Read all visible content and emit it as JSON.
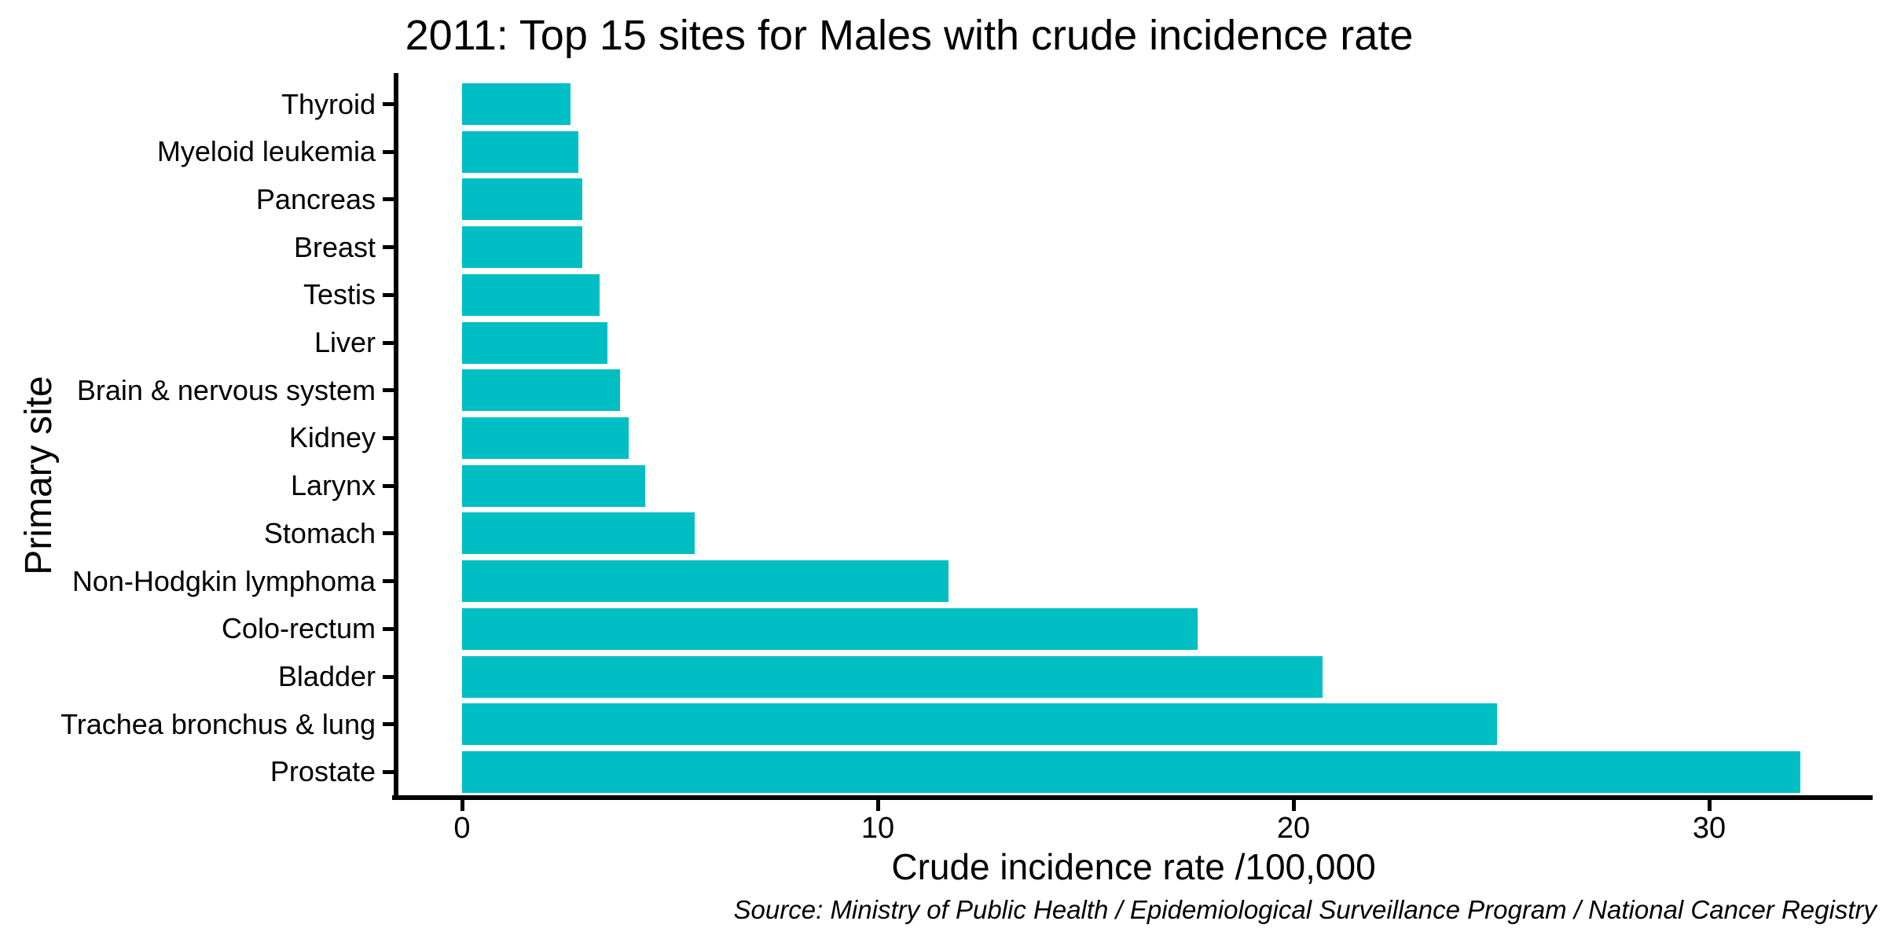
{
  "chart_data": {
    "type": "bar",
    "orientation": "horizontal",
    "title": "2011: Top 15 sites for Males with crude incidence rate",
    "xlabel": "Crude incidence rate /100,000",
    "ylabel": "Primary site",
    "source_note": "Source: Ministry of Public Health / Epidemiological Surveillance Program / National Cancer Registry",
    "categories": [
      "Thyroid",
      "Myeloid leukemia",
      "Pancreas",
      "Breast",
      "Testis",
      "Liver",
      "Brain & nervous system",
      "Kidney",
      "Larynx",
      "Stomach",
      "Non-Hodgkin lymphoma",
      "Colo-rectum",
      "Bladder",
      "Trachea bronchus & lung",
      "Prostate"
    ],
    "category_order": "top-to-bottom",
    "values": [
      2.6,
      2.8,
      2.9,
      2.9,
      3.3,
      3.5,
      3.8,
      4.0,
      4.4,
      5.6,
      11.7,
      17.7,
      20.7,
      24.9,
      32.2
    ],
    "xticks": [
      0,
      10,
      20,
      30
    ],
    "xlim": [
      0,
      33.8
    ],
    "grid": false,
    "legend": false,
    "bar_color": "#00BFC4",
    "axis_color": "#000000",
    "text_color": "#000000",
    "background_color": "#FFFFFF"
  }
}
